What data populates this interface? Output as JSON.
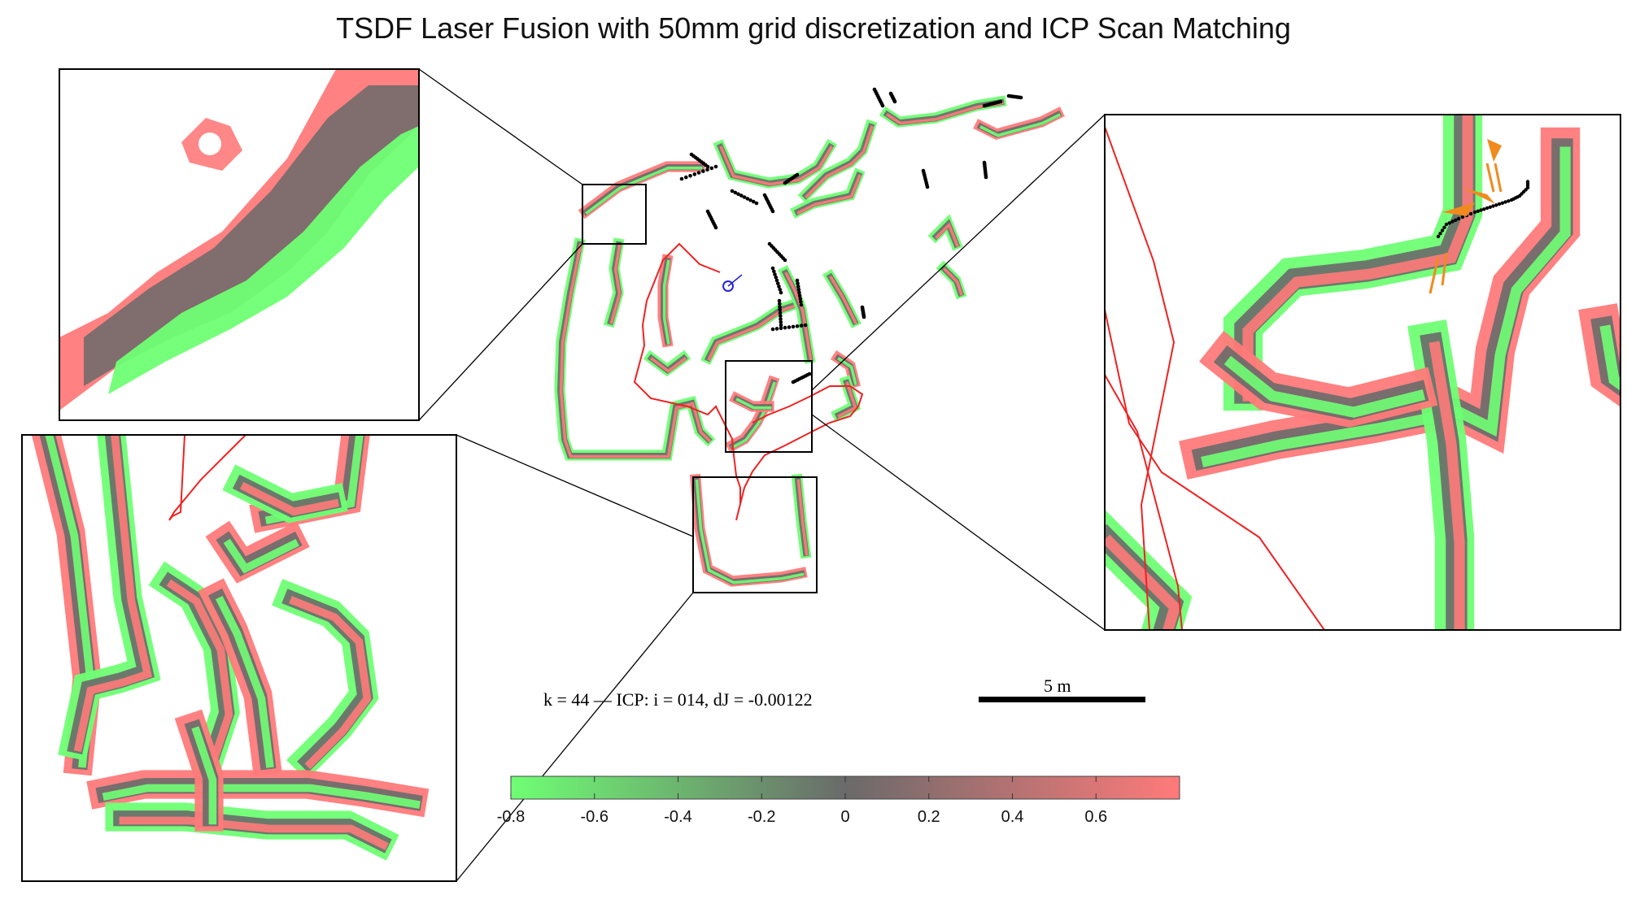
{
  "title": "TSDF Laser Fusion with 50mm grid discretization and ICP Scan Matching",
  "status": "k = 44 — ICP: i = 014, dJ = -0.00122",
  "scale_bar": {
    "label": "5 m"
  },
  "colorbar": {
    "tick_labels": [
      "-0.8",
      "-0.6",
      "-0.4",
      "-0.2",
      "0",
      "0.2",
      "0.4",
      "0.6"
    ],
    "colors": {
      "negative": "#6fff74",
      "zero": "#6a6a6a",
      "positive": "#ff7a7a"
    }
  },
  "colors": {
    "trajectory": "#ee2222",
    "scan_points": "#000000",
    "robot_pose": "#2222dd",
    "scan_match": "#f08a1e",
    "frame": "#000000"
  }
}
